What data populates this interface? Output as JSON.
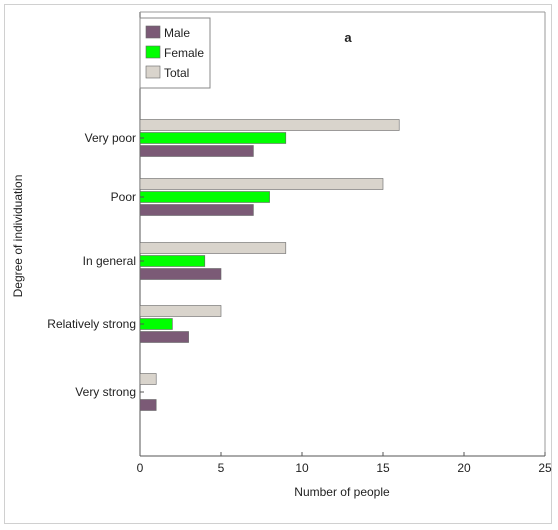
{
  "chart_data": {
    "type": "bar",
    "orientation": "horizontal",
    "panel_label": "a",
    "title": "",
    "xlabel": "Number of people",
    "ylabel": "Degree of individuation",
    "xlim": [
      0,
      25
    ],
    "xticks": [
      0,
      5,
      10,
      15,
      20,
      25
    ],
    "categories": [
      "Very poor",
      "Poor",
      "In general",
      "Relatively strong",
      "Very strong"
    ],
    "series": [
      {
        "name": "Male",
        "color": "#7b5a76",
        "values": [
          7,
          7,
          5,
          3,
          1
        ]
      },
      {
        "name": "Female",
        "color": "#00ff00",
        "values": [
          9,
          8,
          4,
          2,
          0
        ]
      },
      {
        "name": "Total",
        "color": "#d9d4cc",
        "values": [
          16,
          15,
          9,
          5,
          1
        ]
      }
    ],
    "legend_position": "top-left",
    "grid": false
  }
}
